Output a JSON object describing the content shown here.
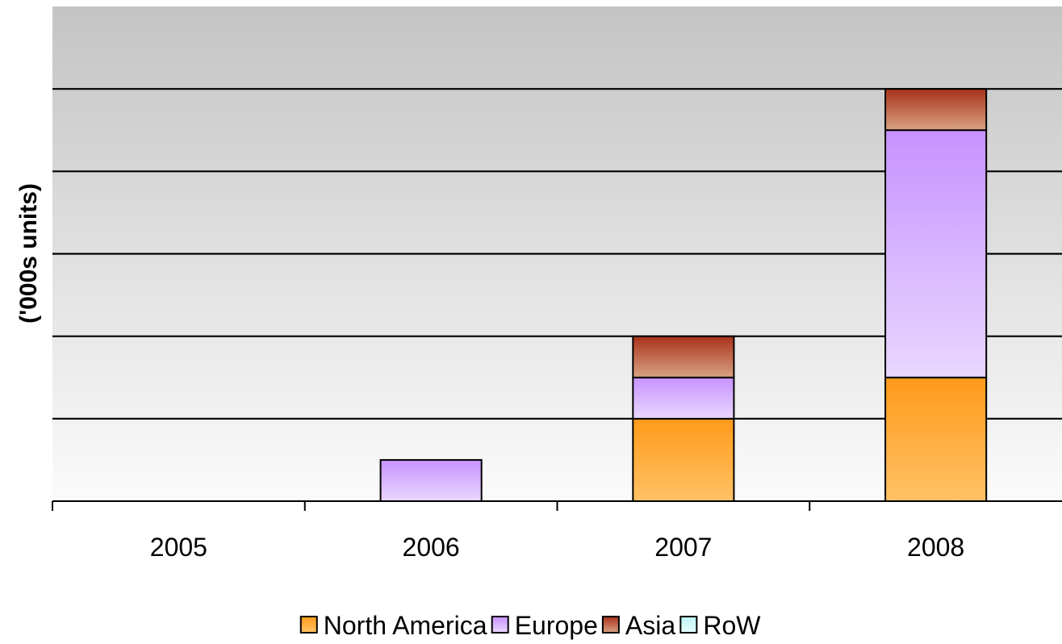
{
  "chart_data": {
    "type": "bar",
    "stacked": true,
    "categories": [
      "2005",
      "2006",
      "2007",
      "2008"
    ],
    "series": [
      {
        "name": "North America",
        "values": [
          0,
          0,
          1.0,
          1.5
        ],
        "color_top": "#ff9a1a",
        "color_bottom": "#ffc266"
      },
      {
        "name": "Europe",
        "values": [
          0,
          0.5,
          0.5,
          3.0
        ],
        "color_top": "#c792ff",
        "color_bottom": "#e9d7ff"
      },
      {
        "name": "Asia",
        "values": [
          0,
          0,
          0.5,
          0.5
        ],
        "color_top": "#a8321a",
        "color_bottom": "#d9a283"
      },
      {
        "name": "RoW",
        "values": [
          0,
          0,
          0,
          0
        ],
        "color_top": "#bff5f5",
        "color_bottom": "#e6ffff"
      }
    ],
    "ylabel": "('000s units)",
    "xlabel": "",
    "ylim": [
      0,
      6
    ],
    "y_gridlines": [
      1,
      2,
      3,
      4,
      5
    ],
    "y_tick_labels_visible": false,
    "grid": true,
    "legend_position": "bottom",
    "plot_background": {
      "top": "#c4c4c4",
      "bottom": "#fbfbfb"
    }
  }
}
